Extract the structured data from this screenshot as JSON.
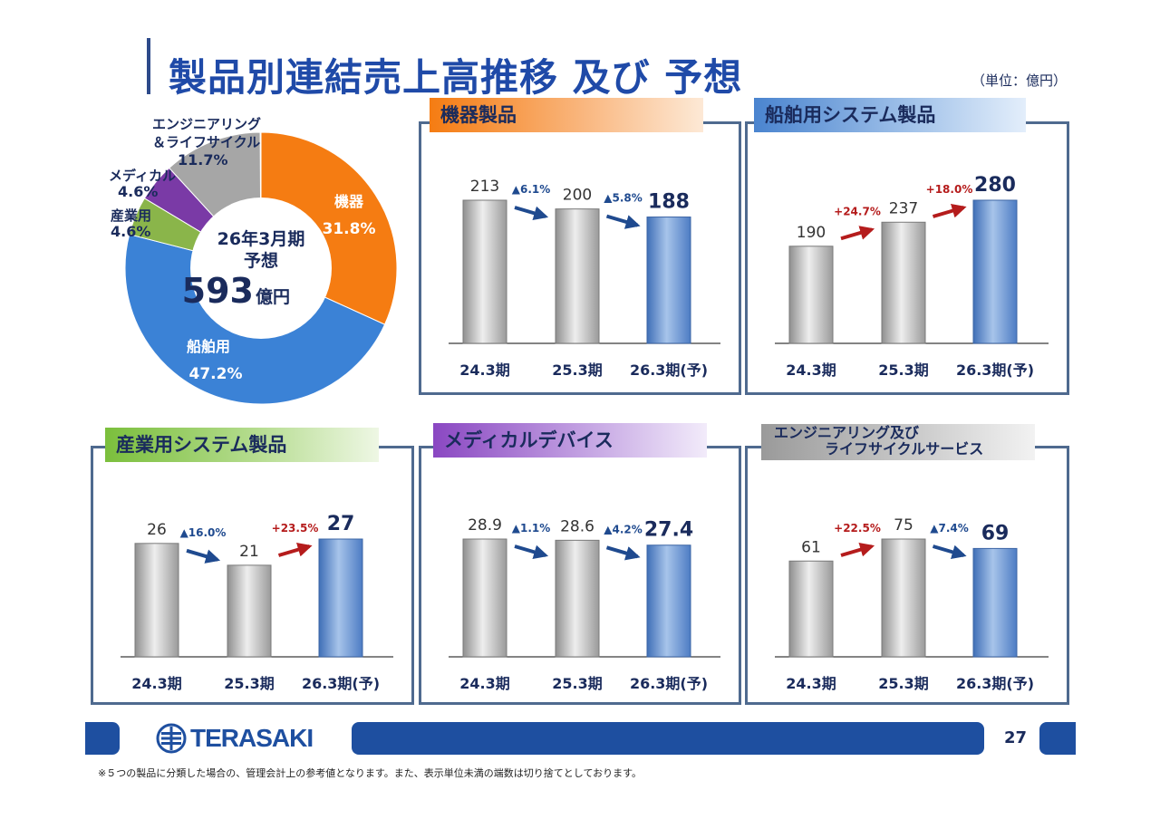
{
  "header": {
    "title": "製品別連結売上高推移 及び 予想",
    "unit": "（単位：億円）"
  },
  "donut": {
    "center_line1": "26年3月期",
    "center_line2": "予想",
    "center_value": "593",
    "center_unit": "億円",
    "segments": [
      {
        "name": "機器",
        "pct": 31.8,
        "label": "31.8%",
        "color": "#f57c12"
      },
      {
        "name": "船舶用",
        "pct": 47.2,
        "label": "47.2%",
        "color": "#3b82d6"
      },
      {
        "name": "産業用",
        "pct": 4.6,
        "label": "4.6%",
        "color": "#8ab54a"
      },
      {
        "name": "メディカル",
        "pct": 4.6,
        "label": "4.6%",
        "color": "#7a3aa6"
      },
      {
        "name": "エンジニアリング＆ライフサイクル",
        "pct": 11.7,
        "label": "11.7%",
        "color": "#a6a6a6"
      }
    ],
    "labels": {
      "kiki": "機器",
      "senpaku": "船舶用",
      "sangyo": "産業用",
      "medical": "メディカル",
      "eng1": "エンジニアリング",
      "eng2": "＆ライフサイクル"
    }
  },
  "panels": {
    "kiki": {
      "title": "機器製品"
    },
    "senpaku": {
      "title": "船舶用システム製品"
    },
    "sangyo": {
      "title": "産業用システム製品"
    },
    "medical": {
      "title": "メディカルデバイス"
    },
    "eng": {
      "title_line1": "エンジニアリング及び",
      "title_line2": "ライフサイクルサービス"
    }
  },
  "chart_data": [
    {
      "type": "bar",
      "title": "機器製品",
      "categories": [
        "24.3期",
        "25.3期",
        "26.3期(予)"
      ],
      "values": [
        213,
        200,
        188
      ],
      "value_labels": [
        "213",
        "200",
        "188"
      ],
      "changes": [
        {
          "text": "▲6.1%",
          "dir": "down"
        },
        {
          "text": "▲5.8%",
          "dir": "down"
        }
      ]
    },
    {
      "type": "bar",
      "title": "船舶用システム製品",
      "categories": [
        "24.3期",
        "25.3期",
        "26.3期(予)"
      ],
      "values": [
        190,
        237,
        280
      ],
      "value_labels": [
        "190",
        "237",
        "280"
      ],
      "changes": [
        {
          "text": "+24.7%",
          "dir": "up"
        },
        {
          "text": "+18.0%",
          "dir": "up"
        }
      ]
    },
    {
      "type": "bar",
      "title": "産業用システム製品",
      "categories": [
        "24.3期",
        "25.3期",
        "26.3期(予)"
      ],
      "values": [
        26,
        21,
        27
      ],
      "value_labels": [
        "26",
        "21",
        "27"
      ],
      "changes": [
        {
          "text": "▲16.0%",
          "dir": "down"
        },
        {
          "text": "+23.5%",
          "dir": "up"
        }
      ]
    },
    {
      "type": "bar",
      "title": "メディカルデバイス",
      "categories": [
        "24.3期",
        "25.3期",
        "26.3期(予)"
      ],
      "values": [
        28.9,
        28.6,
        27.4
      ],
      "value_labels": [
        "28.9",
        "28.6",
        "27.4"
      ],
      "changes": [
        {
          "text": "▲1.1%",
          "dir": "down"
        },
        {
          "text": "▲4.2%",
          "dir": "down"
        }
      ]
    },
    {
      "type": "bar",
      "title": "エンジニアリング及びライフサイクルサービス",
      "categories": [
        "24.3期",
        "25.3期",
        "26.3期(予)"
      ],
      "values": [
        61,
        75,
        69
      ],
      "value_labels": [
        "61",
        "75",
        "69"
      ],
      "changes": [
        {
          "text": "+22.5%",
          "dir": "up"
        },
        {
          "text": "▲7.4%",
          "dir": "down"
        }
      ]
    }
  ],
  "footer": {
    "logo_text": "TERASAKI",
    "page_number": "27",
    "note": "※５つの製品に分類した場合の、管理会計上の参考値となります。また、表示単位未満の端数は切り捨てとしております。"
  }
}
